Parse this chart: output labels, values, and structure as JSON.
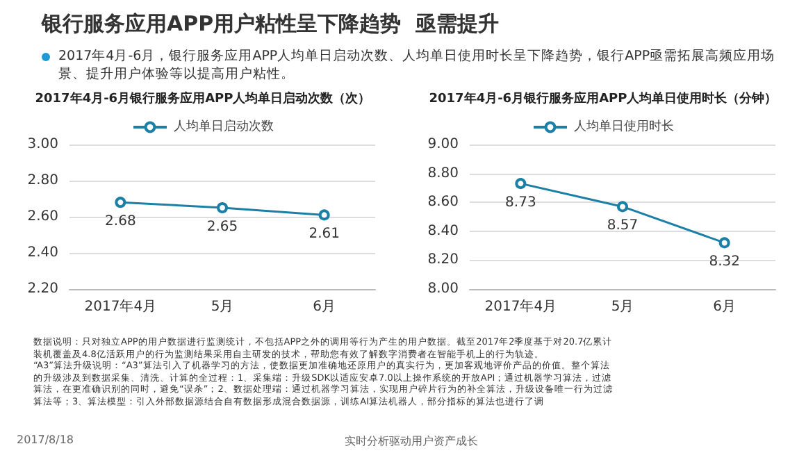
{
  "chart_data": [
    {
      "type": "line",
      "title": "2017年4月-6月银行服务应用APP人均单日启动次数（次）",
      "categories": [
        "2017年4月",
        "5月",
        "6月"
      ],
      "series": [
        {
          "name": "人均单日启动次数",
          "color": "#1b7fa6",
          "values": [
            2.68,
            2.65,
            2.61
          ]
        }
      ],
      "ylim": [
        2.2,
        3.0
      ],
      "yticks": [
        {
          "value": 2.2,
          "label": "2.20"
        },
        {
          "value": 2.4,
          "label": "2.40"
        },
        {
          "value": 2.6,
          "label": "2.60"
        },
        {
          "value": 2.8,
          "label": "2.80"
        },
        {
          "value": 3.0,
          "label": "3.00"
        }
      ],
      "grid": "y",
      "legend": "top",
      "marker": "circle",
      "data_labels": true,
      "annotations": [
        "银行服务应用APP用户粘性呈下降趋势  亟需提升",
        "2017年4月-6月，银行服务应用APP人均单日启动次数、人均单日使用时长呈下降趋势，银行APP亟需拓展高频应用场景、提升用户体验等以提高用户粘性。",
        "数据说明：只对独立APP的用户数据进行监测统计，不包括APP之外的调用等行为产生的用户数据。截至2017年2季度基于对20.7亿累计装机覆盖及4.8亿活跃用户的行为监测结果采用自主研发的技术，帮助您有效了解数字消费者在智能手机上的行为轨迹。",
        "“A3”算法升级说明：“A3”算法引入了机器学习的方法，使数据更加准确地还原用户的真实行为，更加客观地评价产品的价值。整个算法的升级涉及到数据采集、清洗、计算的全过程：1、采集端：升级SDK以适应安卓7.0以上操作系统的开放API；通过机器学习算法，过滤算法，在更准确识别的同时，避免“误杀”；2、数据处理端：通过机器学习算法，实现用户碎片行为的补全算法，升级设备唯一行为过滤算法等；3、算法模型：引入外部数据源结合自有数据形成混合数据源，训练AI算法机器人，部分指标的算法也进行了调",
        "2017/8/18",
        "实时分析驱动用户资产成长"
      ]
    },
    {
      "type": "line",
      "title": "2017年4月-6月银行服务应用APP人均单日使用时长（分钟）",
      "categories": [
        "2017年4月",
        "5月",
        "6月"
      ],
      "series": [
        {
          "name": "人均单日使用时长",
          "color": "#1b7fa6",
          "values": [
            8.73,
            8.57,
            8.32
          ]
        }
      ],
      "ylim": [
        8.0,
        9.0
      ],
      "yticks": [
        {
          "value": 8.0,
          "label": "8.00"
        },
        {
          "value": 8.2,
          "label": "8.20"
        },
        {
          "value": 8.4,
          "label": "8.40"
        },
        {
          "value": 8.6,
          "label": "8.60"
        },
        {
          "value": 8.8,
          "label": "8.80"
        },
        {
          "value": 9.0,
          "label": "9.00"
        }
      ],
      "grid": "y",
      "legend": "top",
      "marker": "circle",
      "data_labels": true
    }
  ]
}
